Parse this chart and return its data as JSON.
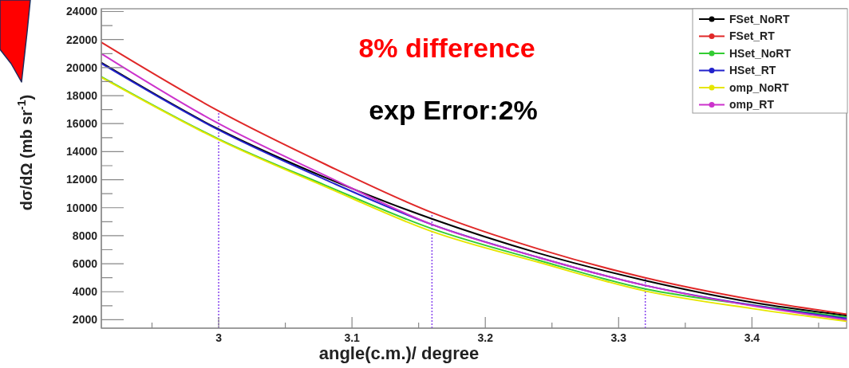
{
  "chart_data": {
    "type": "line",
    "xlabel": "angle(c.m.)/ degree",
    "ylabel": "dσ/dΩ (mb sr$^{-1}$)",
    "xlim": [
      2.912,
      3.471
    ],
    "xticks": [
      3,
      3.1,
      3.2,
      3.3,
      3.4
    ],
    "ylim": [
      1400,
      24200
    ],
    "yticks": [
      2000,
      4000,
      6000,
      8000,
      10000,
      12000,
      14000,
      16000,
      18000,
      20000,
      22000,
      24000
    ],
    "x": [
      2.912,
      3.0,
      3.08,
      3.16,
      3.24,
      3.32,
      3.4,
      3.471
    ],
    "series": [
      {
        "name": "FSet_NoRT",
        "color": "#000000",
        "values": [
          20350,
          15600,
          12150,
          9200,
          6750,
          4800,
          3250,
          2300
        ]
      },
      {
        "name": "FSet_RT",
        "color": "#e02828",
        "values": [
          21800,
          16900,
          13100,
          9650,
          7050,
          5000,
          3450,
          2400
        ]
      },
      {
        "name": "HSet_NoRT",
        "color": "#33cc33",
        "values": [
          19350,
          14900,
          11600,
          8500,
          6250,
          4200,
          3050,
          2200
        ]
      },
      {
        "name": "HSet_RT",
        "color": "#2222cc",
        "values": [
          20300,
          15550,
          12000,
          8800,
          6450,
          4450,
          3050,
          2100
        ]
      },
      {
        "name": "omp_NoRT",
        "color": "#e6e600",
        "values": [
          19300,
          14850,
          11500,
          8300,
          6100,
          4050,
          2800,
          1900
        ]
      },
      {
        "name": "omp_RT",
        "color": "#cc33cc",
        "values": [
          21000,
          16000,
          12300,
          8800,
          6450,
          4450,
          3000,
          2000
        ]
      }
    ],
    "ref_lines": [
      {
        "axis": "x",
        "value": 3,
        "color": "#8844ee",
        "line_style": "dotted"
      },
      {
        "axis": "x",
        "value": 3.16,
        "color": "#8844ee",
        "line_style": "dotted"
      },
      {
        "axis": "x",
        "value": 3.32,
        "color": "#8844ee",
        "line_style": "dotted"
      }
    ],
    "annotations": [
      "8% difference",
      "exp Error:2%"
    ],
    "legend": "top right",
    "grid": false
  }
}
